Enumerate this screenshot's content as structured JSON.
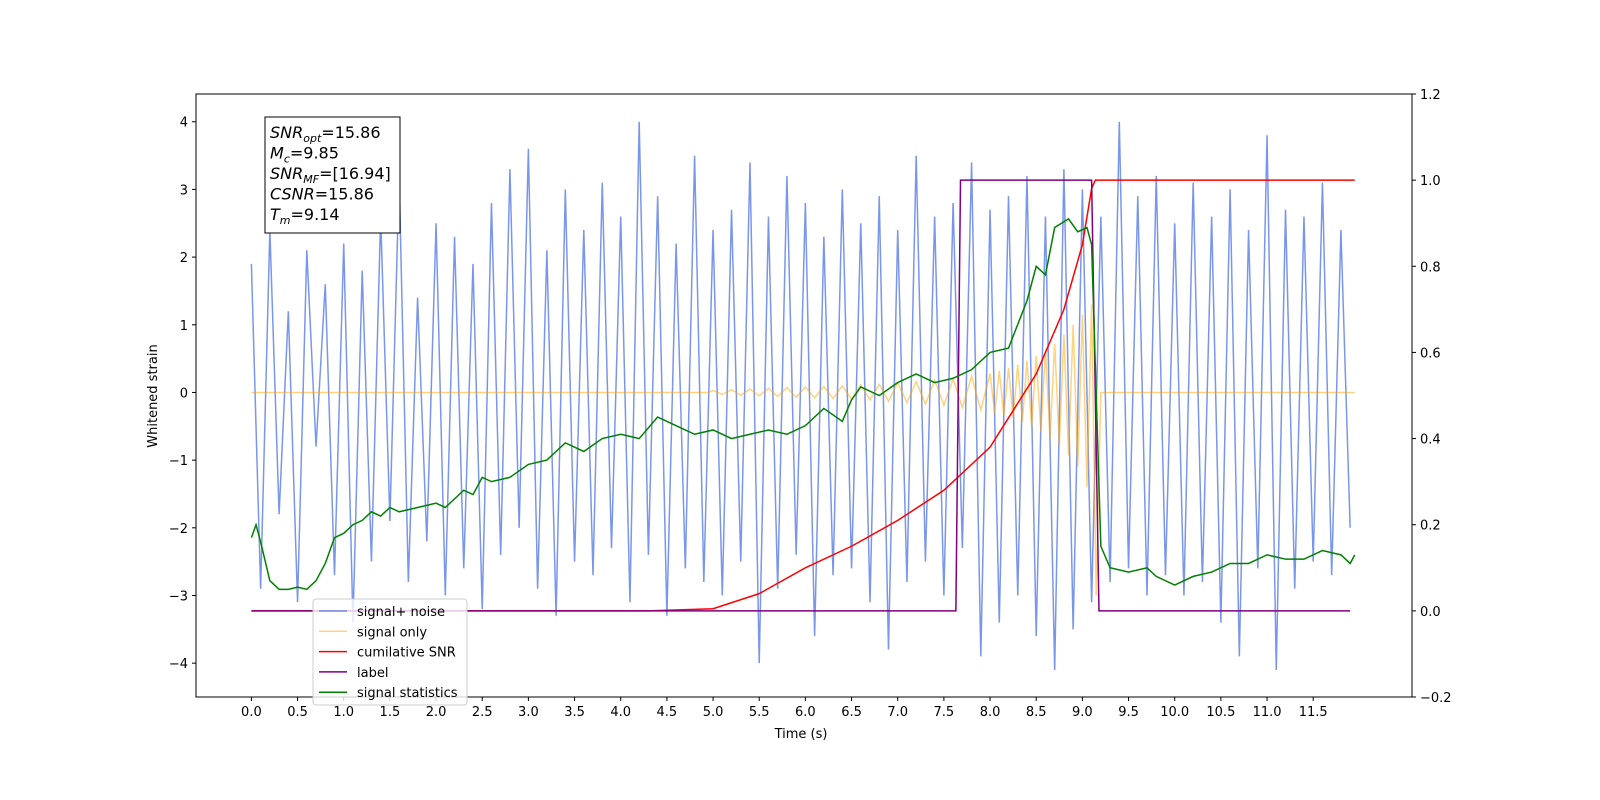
{
  "chart_data": {
    "type": "line",
    "xlabel": "Time (s)",
    "ylabel": "Whitened strain",
    "xlim": [
      -0.6,
      12.57
    ],
    "ylim": [
      -4.5,
      4.41
    ],
    "y2lim": [
      -0.2,
      1.2
    ],
    "xticks": [
      {
        "value": 0,
        "label": "0.0"
      },
      0.5,
      {
        "value": 1,
        "label": "1.0"
      },
      1.5,
      {
        "value": 2,
        "label": "2.0"
      },
      2.5,
      {
        "value": 3,
        "label": "3.0"
      },
      3.5,
      {
        "value": 4,
        "label": "4.0"
      },
      4.5,
      {
        "value": 5,
        "label": "5.0"
      },
      5.5,
      {
        "value": 6,
        "label": "6.0"
      },
      6.5,
      {
        "value": 7,
        "label": "7.0"
      },
      7.5,
      {
        "value": 8,
        "label": "8.0"
      },
      8.5,
      {
        "value": 9,
        "label": "9.0"
      },
      9.5,
      {
        "value": 10,
        "label": "10.0"
      },
      10.5,
      {
        "value": 11,
        "label": "11.0"
      },
      11.5
    ],
    "yticks": [
      {
        "value": -4,
        "label": "−4"
      },
      {
        "value": -3,
        "label": "−3"
      },
      {
        "value": -2,
        "label": "−2"
      },
      {
        "value": -1,
        "label": "−1"
      },
      0,
      1,
      2,
      3,
      4
    ],
    "y2ticks": [
      {
        "value": -0.2,
        "label": "−0.2"
      },
      {
        "value": 0,
        "label": "0.0"
      },
      0.2,
      0.4,
      0.6,
      0.8,
      {
        "value": 1,
        "label": "1.0"
      },
      1.2
    ],
    "annotation": [
      {
        "main": "SNR",
        "sub": "opt",
        "rest": "=15.86"
      },
      {
        "main": "M",
        "sub": "c",
        "rest": "=9.85"
      },
      {
        "main": "SNR",
        "sub": "MF",
        "rest": "=[16.94]"
      },
      {
        "main": "CSNR",
        "sub": "",
        "rest": "=15.86"
      },
      {
        "main": "T",
        "sub": "m",
        "rest": "=9.14"
      }
    ],
    "legend": "lower left",
    "series": [
      {
        "name": "signal+ noise",
        "color": "#4169e1",
        "opacity": 0.7,
        "x": [
          0,
          0.1,
          0.2,
          0.3,
          0.4,
          0.5,
          0.6,
          0.7,
          0.8,
          0.9,
          1,
          1.1,
          1.2,
          1.3,
          1.4,
          1.5,
          1.6,
          1.7,
          1.8,
          1.9,
          2,
          2.1,
          2.2,
          2.3,
          2.4,
          2.5,
          2.6,
          2.7,
          2.8,
          2.9,
          3,
          3.1,
          3.2,
          3.3,
          3.4,
          3.5,
          3.6,
          3.7,
          3.8,
          3.9,
          4,
          4.1,
          4.2,
          4.3,
          4.4,
          4.5,
          4.6,
          4.7,
          4.8,
          4.9,
          5,
          5.1,
          5.2,
          5.3,
          5.4,
          5.5,
          5.6,
          5.7,
          5.8,
          5.9,
          6,
          6.1,
          6.2,
          6.3,
          6.4,
          6.5,
          6.6,
          6.7,
          6.8,
          6.9,
          7,
          7.1,
          7.2,
          7.3,
          7.4,
          7.5,
          7.6,
          7.7,
          7.8,
          7.9,
          8,
          8.1,
          8.2,
          8.3,
          8.4,
          8.5,
          8.6,
          8.7,
          8.8,
          8.9,
          9,
          9.1,
          9.2,
          9.3,
          9.4,
          9.5,
          9.6,
          9.7,
          9.8,
          9.9,
          10,
          10.1,
          10.2,
          10.3,
          10.4,
          10.5,
          10.6,
          10.7,
          10.8,
          10.9,
          11,
          11.1,
          11.2,
          11.3,
          11.4,
          11.5,
          11.6,
          11.7,
          11.8,
          11.9
        ],
        "values": [
          1.9,
          -2.9,
          2.4,
          -1.8,
          1.2,
          -3.1,
          2.1,
          -0.8,
          1.6,
          -2.7,
          2.2,
          -3.4,
          1.8,
          -2.5,
          2.6,
          -1.9,
          3.2,
          -2.8,
          1.4,
          -2.2,
          2.5,
          -3.0,
          2.3,
          -2.6,
          1.9,
          -3.2,
          2.8,
          -2.4,
          3.3,
          -2.0,
          3.6,
          -2.9,
          2.1,
          -3.3,
          3.0,
          -2.5,
          2.4,
          -2.7,
          3.1,
          -2.3,
          2.6,
          -3.1,
          4.0,
          -2.4,
          2.9,
          -3.3,
          2.2,
          -2.6,
          3.5,
          -2.8,
          2.4,
          -3.0,
          2.7,
          -2.5,
          3.4,
          -4.0,
          2.6,
          -2.9,
          3.2,
          -2.4,
          2.8,
          -3.6,
          2.3,
          -2.7,
          3.0,
          -2.6,
          2.5,
          -3.1,
          2.9,
          -3.8,
          2.4,
          -2.8,
          3.5,
          -2.5,
          2.6,
          -3.0,
          2.8,
          -2.3,
          3.4,
          -3.9,
          2.7,
          -3.4,
          2.9,
          -3.0,
          3.2,
          -3.6,
          2.6,
          -4.1,
          3.3,
          -3.5,
          3.0,
          -3.1,
          2.6,
          -2.8,
          4.0,
          -2.6,
          2.9,
          -3.0,
          3.2,
          -2.7,
          2.5,
          -3.0,
          3.1,
          -2.8,
          2.6,
          -3.4,
          3.0,
          -3.9,
          2.4,
          -2.6,
          3.8,
          -4.1,
          2.7,
          -2.9,
          2.6,
          -2.5,
          3.1,
          -2.7,
          2.4,
          -2.0
        ]
      },
      {
        "name": "signal only",
        "color": "orange",
        "opacity": 0.5,
        "x": [
          0,
          4.95,
          5,
          5.1,
          5.2,
          5.3,
          5.4,
          5.5,
          5.6,
          5.7,
          5.8,
          5.9,
          6,
          6.1,
          6.2,
          6.3,
          6.4,
          6.5,
          6.6,
          6.7,
          6.8,
          6.9,
          7,
          7.1,
          7.2,
          7.3,
          7.4,
          7.5,
          7.6,
          7.7,
          7.8,
          7.9,
          8,
          8.05,
          8.1,
          8.15,
          8.2,
          8.25,
          8.3,
          8.35,
          8.4,
          8.45,
          8.5,
          8.55,
          8.6,
          8.65,
          8.7,
          8.75,
          8.8,
          8.85,
          8.9,
          8.95,
          9,
          9.05,
          9.1,
          9.15,
          9.2,
          11.95
        ],
        "values": [
          0,
          0,
          0.03,
          -0.03,
          0.04,
          -0.04,
          0.05,
          -0.05,
          0.06,
          -0.06,
          0.07,
          -0.07,
          0.08,
          -0.08,
          0.09,
          -0.09,
          0.1,
          -0.1,
          0.11,
          -0.11,
          0.12,
          -0.13,
          0.14,
          -0.15,
          0.16,
          -0.17,
          0.18,
          -0.19,
          0.2,
          -0.22,
          0.24,
          -0.26,
          0.28,
          -0.3,
          0.32,
          -0.34,
          0.36,
          -0.38,
          0.41,
          -0.44,
          0.47,
          -0.5,
          0.54,
          -0.58,
          0.62,
          -0.67,
          0.72,
          -0.78,
          0.85,
          -0.93,
          1.0,
          -1.1,
          1.15,
          -1.4,
          1.3,
          -3.0,
          0,
          0
        ]
      },
      {
        "name": "cumilative SNR",
        "color": "red",
        "axis": "y2",
        "x": [
          0,
          4.3,
          5,
          5.5,
          6,
          6.5,
          7,
          7.5,
          8,
          8.5,
          8.8,
          9,
          9.1,
          9.14,
          11.95
        ],
        "values": [
          0,
          0,
          0.005,
          0.04,
          0.1,
          0.15,
          0.21,
          0.28,
          0.38,
          0.55,
          0.7,
          0.85,
          0.98,
          1,
          1
        ]
      },
      {
        "name": "label",
        "color": "purple",
        "axis": "y2",
        "x": [
          0,
          7.63,
          7.68,
          9.1,
          9.18,
          11.9
        ],
        "values": [
          0,
          0,
          1,
          1,
          0,
          0
        ]
      },
      {
        "name": "signal statistics",
        "color": "green",
        "axis": "y2",
        "x": [
          0,
          0.05,
          0.1,
          0.2,
          0.3,
          0.4,
          0.5,
          0.6,
          0.7,
          0.8,
          0.9,
          1,
          1.1,
          1.2,
          1.3,
          1.4,
          1.5,
          1.6,
          1.8,
          2,
          2.1,
          2.3,
          2.4,
          2.5,
          2.6,
          2.8,
          3,
          3.2,
          3.4,
          3.6,
          3.8,
          4,
          4.2,
          4.4,
          4.6,
          4.8,
          5,
          5.2,
          5.4,
          5.6,
          5.8,
          6,
          6.2,
          6.4,
          6.5,
          6.6,
          6.8,
          7,
          7.2,
          7.4,
          7.6,
          7.8,
          8,
          8.2,
          8.4,
          8.5,
          8.6,
          8.7,
          8.85,
          8.95,
          9.05,
          9.1,
          9.15,
          9.2,
          9.3,
          9.5,
          9.7,
          9.8,
          10,
          10.2,
          10.4,
          10.6,
          10.8,
          11,
          11.2,
          11.4,
          11.6,
          11.8,
          11.9,
          11.95
        ],
        "values": [
          0.17,
          0.2,
          0.16,
          0.07,
          0.05,
          0.05,
          0.055,
          0.05,
          0.07,
          0.11,
          0.17,
          0.18,
          0.2,
          0.21,
          0.23,
          0.22,
          0.24,
          0.23,
          0.24,
          0.25,
          0.24,
          0.28,
          0.27,
          0.31,
          0.3,
          0.31,
          0.34,
          0.35,
          0.39,
          0.37,
          0.4,
          0.41,
          0.4,
          0.45,
          0.43,
          0.41,
          0.42,
          0.4,
          0.41,
          0.42,
          0.41,
          0.43,
          0.47,
          0.44,
          0.49,
          0.52,
          0.5,
          0.53,
          0.55,
          0.53,
          0.54,
          0.56,
          0.6,
          0.61,
          0.72,
          0.8,
          0.78,
          0.89,
          0.91,
          0.88,
          0.89,
          0.85,
          0.5,
          0.15,
          0.1,
          0.09,
          0.1,
          0.08,
          0.06,
          0.08,
          0.09,
          0.11,
          0.11,
          0.13,
          0.12,
          0.12,
          0.14,
          0.13,
          0.11,
          0.13
        ]
      }
    ]
  }
}
